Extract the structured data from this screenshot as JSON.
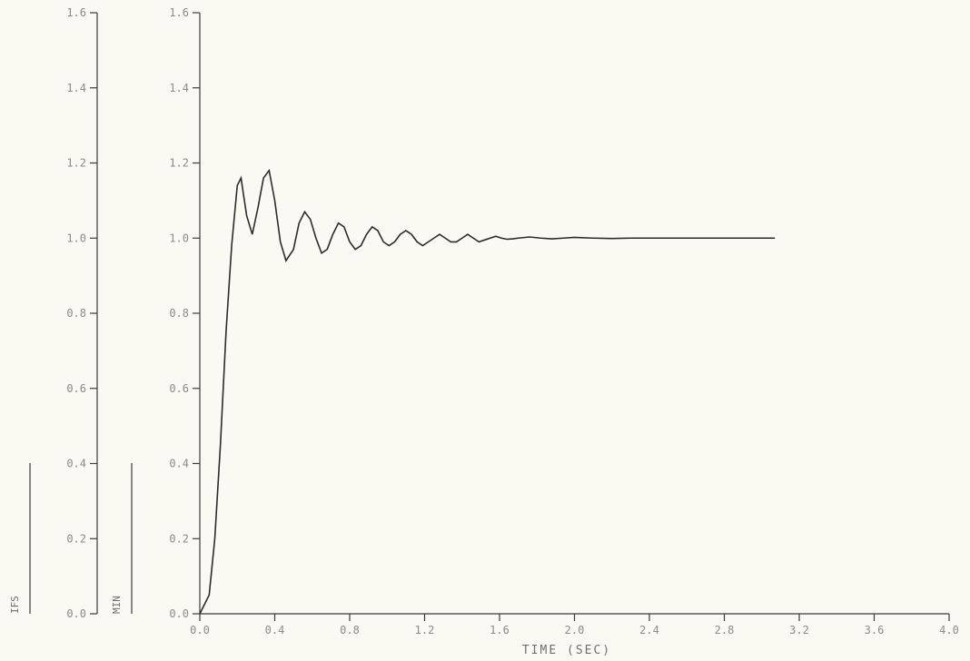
{
  "chart_data": {
    "type": "line",
    "title": "",
    "xlabel": "TIME (SEC)",
    "ylabel": "",
    "xlim": [
      0.0,
      4.0
    ],
    "ylim": [
      0.0,
      1.6
    ],
    "x_ticks": [
      "0.0",
      "0.4",
      "0.8",
      "1.2",
      "1.6",
      "2.0",
      "2.4",
      "2.8",
      "3.2",
      "3.6",
      "4.0"
    ],
    "y_ticks": [
      "0.0",
      "0.2",
      "0.4",
      "0.6",
      "0.8",
      "1.0",
      "1.2",
      "1.4",
      "1.6"
    ],
    "secondary_axis": {
      "label": "IFS",
      "ticks": [
        "0.0",
        "0.2",
        "0.4",
        "0.6",
        "0.8",
        "1.0",
        "1.2",
        "1.4",
        "1.6"
      ]
    },
    "scale_markers": [
      "IFS",
      "MIN"
    ],
    "grid": false,
    "series": [
      {
        "x": [
          0.0,
          0.05,
          0.08,
          0.11,
          0.14,
          0.17,
          0.2,
          0.22,
          0.25,
          0.28,
          0.31,
          0.34,
          0.37,
          0.4,
          0.43,
          0.46,
          0.5,
          0.53,
          0.56,
          0.59,
          0.62,
          0.65,
          0.68,
          0.71,
          0.74,
          0.77,
          0.8,
          0.83,
          0.86,
          0.89,
          0.92,
          0.95,
          0.98,
          1.01,
          1.04,
          1.07,
          1.1,
          1.13,
          1.16,
          1.19,
          1.22,
          1.25,
          1.28,
          1.31,
          1.34,
          1.37,
          1.4,
          1.43,
          1.46,
          1.49,
          1.52,
          1.55,
          1.58,
          1.61,
          1.64,
          1.67,
          1.7,
          1.76,
          1.82,
          1.88,
          1.94,
          2.0,
          2.1,
          2.2,
          2.3,
          2.4,
          2.6,
          2.8,
          3.0,
          3.07
        ],
        "y": [
          0.0,
          0.05,
          0.2,
          0.45,
          0.75,
          0.98,
          1.14,
          1.16,
          1.06,
          1.01,
          1.08,
          1.16,
          1.18,
          1.1,
          0.99,
          0.94,
          0.97,
          1.04,
          1.07,
          1.05,
          1.0,
          0.96,
          0.97,
          1.01,
          1.04,
          1.03,
          0.99,
          0.97,
          0.98,
          1.01,
          1.03,
          1.02,
          0.99,
          0.98,
          0.99,
          1.01,
          1.02,
          1.01,
          0.99,
          0.98,
          0.99,
          1.0,
          1.01,
          1.0,
          0.99,
          0.99,
          1.0,
          1.01,
          1.0,
          0.99,
          0.995,
          1.0,
          1.005,
          1.0,
          0.997,
          0.998,
          1.0,
          1.003,
          1.0,
          0.998,
          1.0,
          1.002,
          1.0,
          0.999,
          1.0,
          1.0,
          1.0,
          1.0,
          1.0,
          1.0
        ]
      }
    ]
  }
}
